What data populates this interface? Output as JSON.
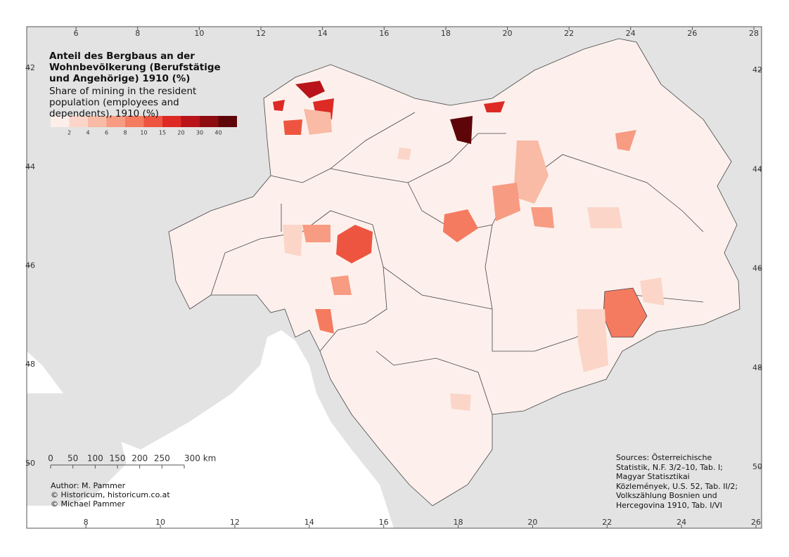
{
  "title": "Anteil des Bergbaus an der Wohnbevölkerung (Berufstätige und Angehörige) 1910 (%)",
  "subtitle": "Share of mining in the resident population (employees and dependents), 1910 (%)",
  "legend": {
    "breaks": [
      2,
      4,
      6,
      8,
      10,
      15,
      20,
      30,
      40
    ],
    "colors": [
      "#fdeeea",
      "#fbd6c8",
      "#f9bba5",
      "#f79b82",
      "#f47b60",
      "#ee5540",
      "#dd2a25",
      "#b81419",
      "#8c0c10",
      "#5e0509"
    ]
  },
  "frame": {
    "top_lim": [
      4.4,
      28.25
    ],
    "top_ticks": [
      6,
      8,
      10,
      12,
      14,
      16,
      18,
      20,
      22,
      24,
      26,
      28
    ],
    "bottom_lim": [
      6.41,
      26.15
    ],
    "bottom_ticks": [
      8,
      10,
      12,
      14,
      16,
      18,
      20,
      22,
      24,
      26
    ],
    "left_lim": [
      41.16,
      51.31
    ],
    "left_ticks": [
      42,
      44,
      46,
      48,
      50
    ],
    "right_lim": [
      41.12,
      51.23
    ],
    "right_ticks": [
      42,
      44,
      46,
      48,
      50
    ]
  },
  "scale_bar": {
    "lim": [
      0,
      300
    ],
    "ticks": [
      0,
      50,
      100,
      150,
      200,
      250,
      {
        "value": 300,
        "label": "300 km"
      }
    ]
  },
  "author": [
    "Author: M. Pammer",
    "© Historicum, historicum.co.at",
    "© Michael Pammer"
  ],
  "sources": "Sources: Österreichische Statistik, N.F. 3/2–10, Tab. I; Magyar Statisztikai Közlemények, U.S. 52, Tab. II/2; Volkszählung Bosnien und Hercegovina 1910, Tab. I/VI"
}
